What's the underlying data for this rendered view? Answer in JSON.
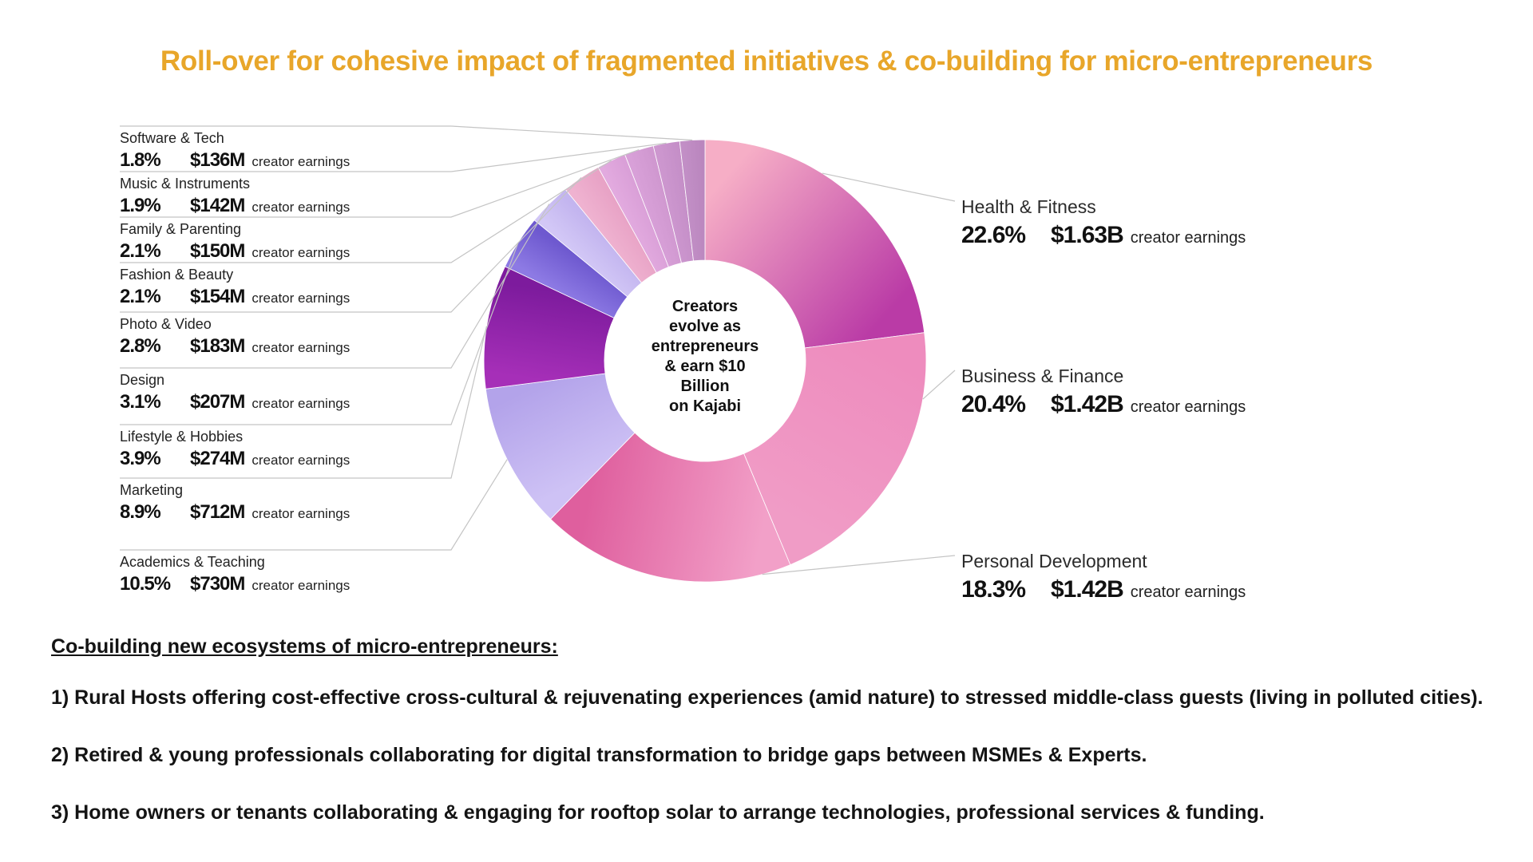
{
  "title": "Roll-over for cohesive impact of fragmented initiatives & co-building for micro-entrepreneurs",
  "colors": {
    "title_accent": "#E8A62A",
    "body_text": "#141414",
    "leader_line": "#C4C4C4",
    "center_text": "#111111"
  },
  "chart_data": {
    "type": "pie",
    "style": "donut",
    "title": "",
    "legend_position": "none",
    "center_text_lines": [
      "Creators",
      "evolve as",
      "entrepreneurs",
      "& earn $10",
      "Billion",
      "on Kajabi"
    ],
    "earnings_suffix": "creator earnings",
    "categories": [
      "Health & Fitness",
      "Business & Finance",
      "Personal Development",
      "Academics & Teaching",
      "Marketing",
      "Lifestyle & Hobbies",
      "Design",
      "Photo & Video",
      "Fashion & Beauty",
      "Family & Parenting",
      "Music & Instruments",
      "Software & Tech"
    ],
    "values": [
      22.6,
      20.4,
      18.3,
      10.5,
      8.9,
      3.9,
      3.1,
      2.8,
      2.1,
      2.1,
      1.9,
      1.8
    ],
    "segments": [
      {
        "label": "Health & Fitness",
        "value": 22.6,
        "pct_label": "22.6%",
        "earnings": "$1.63B",
        "colors": [
          "#F6AEC6",
          "#BA3BA6"
        ]
      },
      {
        "label": "Business & Finance",
        "value": 20.4,
        "pct_label": "20.4%",
        "earnings": "$1.42B",
        "colors": [
          "#EE8CBE",
          "#F09CC6"
        ]
      },
      {
        "label": "Personal Development",
        "value": 18.3,
        "pct_label": "18.3%",
        "earnings": "$1.42B",
        "colors": [
          "#F2A0C8",
          "#DF5F9E"
        ]
      },
      {
        "label": "Academics & Teaching",
        "value": 10.5,
        "pct_label": "10.5%",
        "earnings": "$730M",
        "colors": [
          "#CEC2F5",
          "#B3A3EA"
        ]
      },
      {
        "label": "Marketing",
        "value": 8.9,
        "pct_label": "8.9%",
        "earnings": "$712M",
        "colors": [
          "#A62FB8",
          "#7D1B9D"
        ]
      },
      {
        "label": "Lifestyle & Hobbies",
        "value": 3.9,
        "pct_label": "3.9%",
        "earnings": "$274M",
        "colors": [
          "#8D7AE4",
          "#6E59CF"
        ]
      },
      {
        "label": "Design",
        "value": 3.1,
        "pct_label": "3.1%",
        "earnings": "$207M",
        "colors": [
          "#D2C7F6",
          "#C3B5EF"
        ]
      },
      {
        "label": "Photo & Video",
        "value": 2.8,
        "pct_label": "2.8%",
        "earnings": "$183M",
        "colors": [
          "#EFB2D0",
          "#E8A3C6"
        ]
      },
      {
        "label": "Fashion & Beauty",
        "value": 2.1,
        "pct_label": "2.1%",
        "earnings": "$154M",
        "colors": [
          "#E2AADF",
          "#DAA0D8"
        ]
      },
      {
        "label": "Family & Parenting",
        "value": 2.1,
        "pct_label": "2.1%",
        "earnings": "$150M",
        "colors": [
          "#D8A0D8",
          "#D098D0"
        ]
      },
      {
        "label": "Music & Instruments",
        "value": 1.9,
        "pct_label": "1.9%",
        "earnings": "$142M",
        "colors": [
          "#CD97CF",
          "#C58FC8"
        ]
      },
      {
        "label": "Software & Tech",
        "value": 1.8,
        "pct_label": "1.8%",
        "earnings": "$136M",
        "colors": [
          "#C28FC6",
          "#BA86BE"
        ]
      }
    ]
  },
  "footer": {
    "heading": "Co-building new ecosystems of micro-entrepreneurs:",
    "points": [
      "1) Rural Hosts offering cost-effective cross-cultural & rejuvenating experiences (amid nature) to stressed middle-class guests (living in polluted cities).",
      "2) Retired & young professionals collaborating for digital transformation to bridge gaps between MSMEs & Experts.",
      "3) Home owners or tenants collaborating & engaging for rooftop solar to arrange technologies, professional services & funding."
    ]
  }
}
